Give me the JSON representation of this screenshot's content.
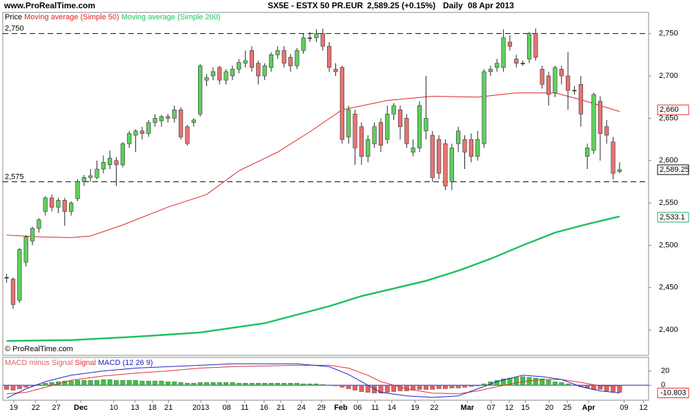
{
  "header": {
    "site": "www.ProRealTime.com",
    "symbol": "SX5E - ESTX 50 PR.EUR",
    "last": "2,589.25 (+0.15%)",
    "period": "Daily",
    "date": "08 Apr 2013"
  },
  "chart_data": [
    {
      "type": "candlestick",
      "legend_title": "Price",
      "copyright": "© ProRealTime.com",
      "up_color": "#5fcf5f",
      "down_color": "#e87272",
      "xlim": [
        -0.6,
        99.5
      ],
      "ylim": [
        2370,
        2775
      ],
      "yticks": [
        {
          "value": 2400,
          "label": "2,400"
        },
        {
          "value": 2450,
          "label": "2,450"
        },
        {
          "value": 2500,
          "label": "2,500"
        },
        {
          "value": 2550,
          "label": "2,550"
        },
        {
          "value": 2600,
          "label": "2,600"
        },
        {
          "value": 2650,
          "label": "2,650"
        },
        {
          "value": 2700,
          "label": "2,700"
        },
        {
          "value": 2750,
          "label": "2,750"
        }
      ],
      "xticks": [
        {
          "value": 1.1,
          "label": "19"
        },
        {
          "value": 4.5,
          "label": "22"
        },
        {
          "value": 7.7,
          "label": "27"
        },
        {
          "value": 11.5,
          "label": "Dec"
        },
        {
          "value": 16.6,
          "label": "10"
        },
        {
          "value": 19.9,
          "label": "13"
        },
        {
          "value": 22.6,
          "label": "18"
        },
        {
          "value": 25.1,
          "label": "21"
        },
        {
          "value": 30.1,
          "label": "2013"
        },
        {
          "value": 34.1,
          "label": "08"
        },
        {
          "value": 36.9,
          "label": "11"
        },
        {
          "value": 39.9,
          "label": "16"
        },
        {
          "value": 42.5,
          "label": "21"
        },
        {
          "value": 45.7,
          "label": "24"
        },
        {
          "value": 48.8,
          "label": "29"
        },
        {
          "value": 51.8,
          "label": "Feb"
        },
        {
          "value": 54.4,
          "label": "06"
        },
        {
          "value": 57.1,
          "label": "11"
        },
        {
          "value": 59.7,
          "label": "14"
        },
        {
          "value": 63.3,
          "label": "19"
        },
        {
          "value": 66.3,
          "label": "22"
        },
        {
          "value": 71.4,
          "label": "Mar"
        },
        {
          "value": 75.1,
          "label": "07"
        },
        {
          "value": 77.9,
          "label": "12"
        },
        {
          "value": 80.4,
          "label": "15"
        },
        {
          "value": 84.1,
          "label": "20"
        },
        {
          "value": 86.9,
          "label": "25"
        },
        {
          "value": 90.2,
          "label": "Apr"
        },
        {
          "value": 95.7,
          "label": "09"
        },
        {
          "value": 98.7,
          "label": "12"
        }
      ],
      "levels": [
        {
          "value": 2750,
          "label": "2,750"
        },
        {
          "value": 2575,
          "label": "2,575"
        }
      ],
      "price_labels": [
        {
          "value": 2660,
          "label": "2,660",
          "color": "#e03030"
        },
        {
          "value": 2589.25,
          "label": "2,589.25",
          "color": "#000000"
        },
        {
          "value": 2533.1,
          "label": "2,533.1",
          "color": "#20b060"
        }
      ],
      "ohlc": [
        [
          2462,
          2466,
          2456,
          2462
        ],
        [
          2460,
          2462,
          2425,
          2430
        ],
        [
          2435,
          2497,
          2432,
          2495
        ],
        [
          2480,
          2512,
          2475,
          2510
        ],
        [
          2505,
          2522,
          2500,
          2520
        ],
        [
          2520,
          2532,
          2515,
          2530
        ],
        [
          2540,
          2558,
          2535,
          2556
        ],
        [
          2556,
          2560,
          2540,
          2545
        ],
        [
          2545,
          2556,
          2538,
          2553
        ],
        [
          2553,
          2556,
          2523,
          2540
        ],
        [
          2540,
          2552,
          2535,
          2550
        ],
        [
          2555,
          2578,
          2552,
          2575
        ],
        [
          2575,
          2583,
          2570,
          2580
        ],
        [
          2580,
          2590,
          2575,
          2582
        ],
        [
          2580,
          2600,
          2578,
          2590
        ],
        [
          2590,
          2606,
          2585,
          2598
        ],
        [
          2595,
          2612,
          2590,
          2603
        ],
        [
          2600,
          2604,
          2570,
          2595
        ],
        [
          2595,
          2622,
          2592,
          2620
        ],
        [
          2620,
          2635,
          2615,
          2632
        ],
        [
          2630,
          2637,
          2610,
          2635
        ],
        [
          2635,
          2640,
          2625,
          2632
        ],
        [
          2632,
          2648,
          2628,
          2645
        ],
        [
          2645,
          2655,
          2640,
          2650
        ],
        [
          2647,
          2654,
          2640,
          2652
        ],
        [
          2652,
          2655,
          2645,
          2650
        ],
        [
          2650,
          2665,
          2645,
          2660
        ],
        [
          2660,
          2663,
          2625,
          2628
        ],
        [
          2640,
          2642,
          2618,
          2620
        ],
        [
          2645,
          2650,
          2640,
          2648
        ],
        [
          2655,
          2714,
          2652,
          2712
        ],
        [
          2695,
          2702,
          2688,
          2698
        ],
        [
          2700,
          2710,
          2695,
          2705
        ],
        [
          2710,
          2712,
          2690,
          2695
        ],
        [
          2695,
          2708,
          2690,
          2705
        ],
        [
          2700,
          2712,
          2695,
          2708
        ],
        [
          2708,
          2720,
          2703,
          2716
        ],
        [
          2715,
          2730,
          2710,
          2718
        ],
        [
          2730,
          2735,
          2705,
          2710
        ],
        [
          2715,
          2718,
          2690,
          2700
        ],
        [
          2700,
          2715,
          2695,
          2712
        ],
        [
          2710,
          2728,
          2705,
          2725
        ],
        [
          2725,
          2735,
          2720,
          2730
        ],
        [
          2730,
          2735,
          2710,
          2715
        ],
        [
          2722,
          2726,
          2705,
          2712
        ],
        [
          2712,
          2733,
          2708,
          2730
        ],
        [
          2730,
          2750,
          2726,
          2745
        ],
        [
          2745,
          2752,
          2740,
          2745
        ],
        [
          2745,
          2755,
          2740,
          2750
        ],
        [
          2750,
          2756,
          2730,
          2735
        ],
        [
          2735,
          2740,
          2705,
          2710
        ],
        [
          2708,
          2715,
          2700,
          2705
        ],
        [
          2710,
          2712,
          2620,
          2625
        ],
        [
          2628,
          2665,
          2620,
          2660
        ],
        [
          2655,
          2660,
          2595,
          2615
        ],
        [
          2640,
          2645,
          2595,
          2605
        ],
        [
          2605,
          2630,
          2598,
          2625
        ],
        [
          2620,
          2645,
          2615,
          2640
        ],
        [
          2645,
          2650,
          2610,
          2618
        ],
        [
          2625,
          2665,
          2620,
          2655
        ],
        [
          2655,
          2668,
          2648,
          2665
        ],
        [
          2660,
          2665,
          2625,
          2640
        ],
        [
          2650,
          2655,
          2615,
          2620
        ],
        [
          2610,
          2625,
          2605,
          2615
        ],
        [
          2615,
          2670,
          2610,
          2665
        ],
        [
          2635,
          2700,
          2625,
          2650
        ],
        [
          2630,
          2635,
          2575,
          2580
        ],
        [
          2625,
          2630,
          2578,
          2585
        ],
        [
          2620,
          2625,
          2565,
          2570
        ],
        [
          2575,
          2620,
          2565,
          2615
        ],
        [
          2620,
          2640,
          2610,
          2635
        ],
        [
          2625,
          2630,
          2590,
          2610
        ],
        [
          2625,
          2632,
          2598,
          2605
        ],
        [
          2605,
          2635,
          2600,
          2625
        ],
        [
          2620,
          2708,
          2615,
          2705
        ],
        [
          2705,
          2712,
          2700,
          2708
        ],
        [
          2710,
          2720,
          2705,
          2715
        ],
        [
          2710,
          2755,
          2705,
          2745
        ],
        [
          2740,
          2748,
          2730,
          2735
        ],
        [
          2720,
          2725,
          2710,
          2715
        ],
        [
          2715,
          2718,
          2712,
          2715
        ],
        [
          2720,
          2752,
          2715,
          2750
        ],
        [
          2750,
          2756,
          2718,
          2722
        ],
        [
          2708,
          2712,
          2685,
          2690
        ],
        [
          2700,
          2705,
          2665,
          2678
        ],
        [
          2680,
          2712,
          2675,
          2710
        ],
        [
          2708,
          2712,
          2690,
          2700
        ],
        [
          2700,
          2728,
          2660,
          2683
        ],
        [
          2683,
          2688,
          2678,
          2683
        ],
        [
          2690,
          2700,
          2640,
          2655
        ],
        [
          2605,
          2620,
          2590,
          2615
        ],
        [
          2612,
          2680,
          2608,
          2678
        ],
        [
          2670,
          2676,
          2600,
          2632
        ],
        [
          2640,
          2648,
          2620,
          2630
        ],
        [
          2622,
          2628,
          2578,
          2585
        ],
        [
          2587,
          2598,
          2585,
          2589.25
        ]
      ],
      "series": [
        {
          "name": "Moving average (Simple 50)",
          "color": "#e02020",
          "width": 1,
          "x": [
            0,
            5,
            10,
            13,
            18,
            25,
            31,
            36,
            42,
            47,
            52,
            59,
            66,
            73,
            79,
            85,
            89,
            95
          ],
          "values": [
            2512,
            2510,
            2509,
            2511,
            2524,
            2545,
            2560,
            2588,
            2610,
            2634,
            2660,
            2671,
            2676,
            2675,
            2680,
            2680,
            2672,
            2658
          ]
        },
        {
          "name": "Moving average (Simple 200)",
          "color": "#20c060",
          "width": 2.5,
          "x": [
            0,
            10,
            20,
            30,
            40,
            50,
            55,
            60,
            65,
            70,
            75,
            80,
            85,
            90,
            95
          ],
          "values": [
            2387,
            2388,
            2392,
            2397,
            2408,
            2428,
            2440,
            2449,
            2458,
            2470,
            2484,
            2500,
            2515,
            2525,
            2534
          ]
        }
      ]
    },
    {
      "type": "macd",
      "xlim": [
        -0.6,
        99.5
      ],
      "ylim": [
        -21,
        39
      ],
      "yticks": [
        0,
        20
      ],
      "value_box": {
        "value": -10.803,
        "label": "-10.803",
        "color": "#e03030"
      },
      "histogram": {
        "name": "MACD minus Signal",
        "up_color": "#3cc43c",
        "down_color": "#e06060",
        "values": [
          -6,
          -7,
          -5,
          -3,
          -1,
          1,
          3,
          4,
          5,
          6,
          6,
          7,
          7,
          7,
          7,
          8,
          8,
          7,
          7,
          7,
          7,
          6,
          6,
          6,
          6,
          5,
          5,
          4,
          3,
          3,
          4,
          4,
          4,
          4,
          4,
          4,
          3,
          3,
          3,
          3,
          3,
          3,
          3,
          3,
          3,
          3,
          2,
          2,
          2,
          1,
          0,
          -1,
          -3,
          -5,
          -7,
          -9,
          -10,
          -11,
          -11,
          -10,
          -9,
          -8,
          -8,
          -7,
          -6,
          -6,
          -6,
          -5,
          -5,
          -4,
          -4,
          -3,
          -2,
          -1,
          2,
          5,
          7,
          9,
          10,
          11,
          12,
          11,
          10,
          9,
          7,
          5,
          4,
          2,
          0,
          -2,
          -4,
          -6,
          -6,
          -8,
          -9,
          -10
        ]
      },
      "series": [
        {
          "name": "Signal",
          "color": "#e03030",
          "x": [
            0,
            3,
            6,
            10,
            15,
            20,
            25,
            30,
            35,
            40,
            45,
            50,
            53,
            56,
            58,
            62,
            66,
            70,
            73,
            76,
            80,
            83,
            86,
            89,
            92,
            95
          ],
          "values": [
            -12,
            -10,
            -3,
            7,
            13,
            17,
            20,
            24,
            26,
            27,
            28,
            28,
            24,
            14,
            5,
            -5,
            -11,
            -12,
            -8,
            -2,
            5,
            8,
            8,
            4,
            -1,
            -1
          ]
        },
        {
          "name": "MACD (12 26 9)",
          "color": "#2020c0",
          "x": [
            0,
            3,
            6,
            10,
            15,
            20,
            25,
            30,
            35,
            40,
            45,
            50,
            53,
            56,
            58,
            62,
            66,
            70,
            73,
            76,
            80,
            83,
            86,
            89,
            92,
            95
          ],
          "values": [
            -18,
            -5,
            5,
            14,
            20,
            24,
            26,
            28,
            30,
            30,
            30,
            26,
            15,
            0,
            -10,
            -15,
            -17,
            -15,
            -5,
            5,
            14,
            12,
            8,
            -2,
            -8,
            -10.803
          ]
        }
      ]
    }
  ]
}
